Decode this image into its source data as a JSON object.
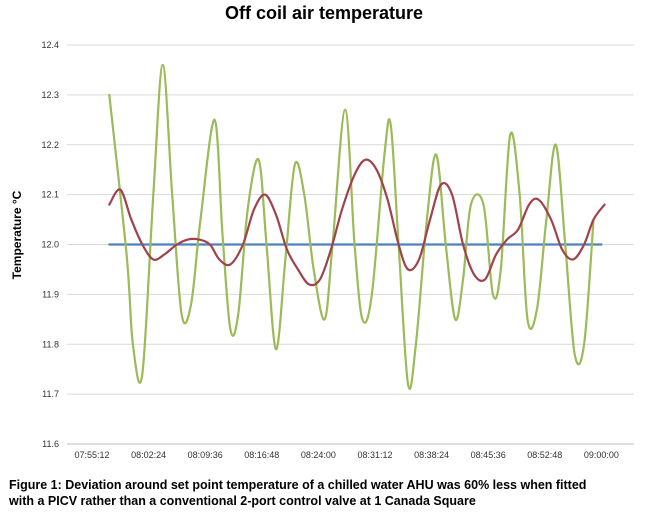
{
  "chart_data": {
    "type": "line",
    "title": "Off coil air temperature",
    "ylabel": "Temperature °C",
    "xlabel": "",
    "ylim": [
      11.6,
      12.4
    ],
    "y_ticks": [
      "11.6",
      "11.7",
      "11.8",
      "11.9",
      "12.0",
      "12.1",
      "12.2",
      "12.3",
      "12.4"
    ],
    "x_ticks": [
      "07:55:12",
      "08:02:24",
      "08:09:36",
      "08:16:48",
      "08:24:00",
      "08:31:12",
      "08:38:24",
      "08:45:36",
      "08:52:48",
      "09:00:00"
    ],
    "grid": "horizontal",
    "legend": "none",
    "series": [
      {
        "color": "#4f81bd",
        "points": [
          [
            "07:57:24",
            12.0
          ],
          [
            "09:00:00",
            12.0
          ]
        ]
      },
      {
        "color": "#9bbb59",
        "points": [
          [
            "07:57:24",
            12.3
          ],
          [
            "07:59:36",
            11.98
          ],
          [
            "08:00:24",
            11.8
          ],
          [
            "08:01:36",
            11.74
          ],
          [
            "08:03:00",
            12.1
          ],
          [
            "08:04:12",
            12.36
          ],
          [
            "08:05:24",
            12.1
          ],
          [
            "08:06:36",
            11.86
          ],
          [
            "08:07:48",
            11.88
          ],
          [
            "08:09:00",
            12.05
          ],
          [
            "08:10:48",
            12.25
          ],
          [
            "08:11:48",
            12.02
          ],
          [
            "08:12:48",
            11.83
          ],
          [
            "08:13:48",
            11.86
          ],
          [
            "08:15:00",
            12.07
          ],
          [
            "08:16:24",
            12.17
          ],
          [
            "08:17:24",
            12.0
          ],
          [
            "08:18:36",
            11.79
          ],
          [
            "08:19:48",
            11.97
          ],
          [
            "08:21:00",
            12.16
          ],
          [
            "08:22:12",
            12.1
          ],
          [
            "08:23:24",
            11.95
          ],
          [
            "08:24:48",
            11.85
          ],
          [
            "08:25:48",
            12.0
          ],
          [
            "08:27:24",
            12.27
          ],
          [
            "08:28:36",
            12.0
          ],
          [
            "08:29:36",
            11.85
          ],
          [
            "08:30:48",
            11.9
          ],
          [
            "08:32:24",
            12.18
          ],
          [
            "08:33:12",
            12.24
          ],
          [
            "08:34:12",
            12.0
          ],
          [
            "08:35:24",
            11.72
          ],
          [
            "08:36:24",
            11.8
          ],
          [
            "08:37:48",
            12.05
          ],
          [
            "08:39:00",
            12.18
          ],
          [
            "08:40:12",
            12.0
          ],
          [
            "08:41:24",
            11.85
          ],
          [
            "08:42:24",
            11.93
          ],
          [
            "08:43:24",
            12.08
          ],
          [
            "08:45:00",
            12.08
          ],
          [
            "08:46:12",
            11.9
          ],
          [
            "08:47:12",
            11.95
          ],
          [
            "08:48:24",
            12.22
          ],
          [
            "08:49:36",
            12.1
          ],
          [
            "08:50:36",
            11.85
          ],
          [
            "08:51:48",
            11.87
          ],
          [
            "08:53:00",
            12.05
          ],
          [
            "08:54:12",
            12.2
          ],
          [
            "08:55:24",
            12.0
          ],
          [
            "08:56:36",
            11.78
          ],
          [
            "08:57:48",
            11.8
          ],
          [
            "08:59:00",
            12.05
          ]
        ]
      },
      {
        "color": "#a0424a",
        "points": [
          [
            "07:57:24",
            12.08
          ],
          [
            "07:58:48",
            12.11
          ],
          [
            "08:00:12",
            12.05
          ],
          [
            "08:01:36",
            12.0
          ],
          [
            "08:03:00",
            11.97
          ],
          [
            "08:04:24",
            11.98
          ],
          [
            "08:06:00",
            12.0
          ],
          [
            "08:07:24",
            12.01
          ],
          [
            "08:08:48",
            12.01
          ],
          [
            "08:10:12",
            12.0
          ],
          [
            "08:11:24",
            11.97
          ],
          [
            "08:12:48",
            11.96
          ],
          [
            "08:14:24",
            12.0
          ],
          [
            "08:15:48",
            12.07
          ],
          [
            "08:17:12",
            12.1
          ],
          [
            "08:18:36",
            12.06
          ],
          [
            "08:20:00",
            11.99
          ],
          [
            "08:21:24",
            11.95
          ],
          [
            "08:22:48",
            11.92
          ],
          [
            "08:24:12",
            11.93
          ],
          [
            "08:25:36",
            11.99
          ],
          [
            "08:27:00",
            12.07
          ],
          [
            "08:28:36",
            12.14
          ],
          [
            "08:30:00",
            12.17
          ],
          [
            "08:31:24",
            12.15
          ],
          [
            "08:32:48",
            12.09
          ],
          [
            "08:34:12",
            12.0
          ],
          [
            "08:35:24",
            11.95
          ],
          [
            "08:36:48",
            11.97
          ],
          [
            "08:38:12",
            12.05
          ],
          [
            "08:39:36",
            12.12
          ],
          [
            "08:41:00",
            12.1
          ],
          [
            "08:42:24",
            12.0
          ],
          [
            "08:43:48",
            11.94
          ],
          [
            "08:45:12",
            11.93
          ],
          [
            "08:46:36",
            11.98
          ],
          [
            "08:48:00",
            12.01
          ],
          [
            "08:49:24",
            12.03
          ],
          [
            "08:50:48",
            12.08
          ],
          [
            "08:52:00",
            12.09
          ],
          [
            "08:53:36",
            12.05
          ],
          [
            "08:55:00",
            11.99
          ],
          [
            "08:56:24",
            11.97
          ],
          [
            "08:57:48",
            12.0
          ],
          [
            "08:59:00",
            12.05
          ],
          [
            "09:00:24",
            12.08
          ]
        ]
      }
    ]
  },
  "caption": {
    "line1": "Figure 1: Deviation around set point temperature of a chilled water AHU was 60% less when fitted",
    "line2": "with a PICV rather than a conventional 2-port control valve at 1 Canada Square"
  }
}
